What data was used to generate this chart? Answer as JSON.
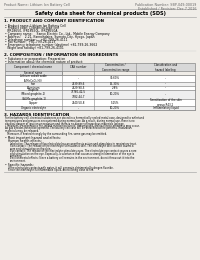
{
  "bg_color": "#f0ede8",
  "header_left": "Product Name: Lithium Ion Battery Cell",
  "header_right_line1": "Publication Number: SBP-049-00019",
  "header_right_line2": "Established / Revision: Dec.7.2016",
  "main_title": "Safety data sheet for chemical products (SDS)",
  "section1_title": "1. PRODUCT AND COMPANY IDENTIFICATION",
  "section1_lines": [
    "• Product name: Lithium Ion Battery Cell",
    "• Product code: Cylindrical-type cell",
    "  IFR18650, IFR18650L, IFR18650A",
    "• Company name:    Sanyo Electric Co., Ltd., Mobile Energy Company",
    "• Address:    2-21, Kannondaira, Sumoto-City, Hyogo, Japan",
    "• Telephone number:    +81-799-26-4111",
    "• Fax number:  +81-799-26-4123",
    "• Emergency telephone number (daytime) +81-799-26-3662",
    "  (Night and holiday) +81-799-26-4101"
  ],
  "section2_title": "2. COMPOSITION / INFORMATION ON INGREDIENTS",
  "section2_sub": "• Substance or preparation: Preparation",
  "section2_subsub": "• Information about the chemical nature of product:",
  "table_headers": [
    "Component / chemical name",
    "CAS number",
    "Concentration /\nConcentration range",
    "Classification and\nhazard labeling"
  ],
  "table_col_header": "Several name",
  "table_rows": [
    [
      "Lithium cobalt oxide\n(LiMnCoO₂(H))",
      "-",
      "30-60%",
      "-"
    ],
    [
      "Iron",
      "7439-89-6",
      "15-30%",
      "-"
    ],
    [
      "Aluminum",
      "7429-90-5",
      "2-8%",
      "-"
    ],
    [
      "Graphite\n(Mixed graphite-1)\n(AI-Mo graphite-1)",
      "77760-42-5\n7782-44-7",
      "10-20%",
      "-"
    ],
    [
      "Copper",
      "7440-50-8",
      "5-15%",
      "Sensitization of the skin\ngroup R43.2"
    ],
    [
      "Organic electrolyte",
      "-",
      "10-20%",
      "Inflammatory liquid"
    ]
  ],
  "section3_title": "3. HAZARDS IDENTIFICATION",
  "section3_para": [
    "For the battery cell, chemical substances are stored in a hermetically sealed metal case, designed to withstand",
    "temperatures and pressures encountered during normal use. As a result, during normal use, there is no",
    "physical danger of ignition or explosion and there is no danger of hazardous materials leakage.",
    "   However, if exposed to a fire, added mechanical shock, decomposed, amino-electro-otherness may occur.",
    "As gas besides cannot be operated. The battery cell case will be breached at fire patterns. Hazardous",
    "materials may be released.",
    "   Moreover, if heated strongly by the surrounding fire, some gas may be emitted."
  ],
  "section3_bullet1": "• Most important hazard and effects:",
  "section3_human": "Human health effects:",
  "section3_human_lines": [
    "Inhalation: The release of the electrolyte has an anesthesia action and stimulates in respiratory tract.",
    "Skin contact: The release of the electrolyte stimulates a skin. The electrolyte skin contact causes a",
    "sore and stimulation on the skin.",
    "Eye contact: The release of the electrolyte stimulates eyes. The electrolyte eye contact causes a sore",
    "and stimulation on the eye. Especially, a substance that causes a strong inflammation of the eye is",
    "contained.",
    "Environmental effects: Since a battery cell remains in the environment, do not throw out it into the",
    "environment."
  ],
  "section3_specific": "• Specific hazards:",
  "section3_specific_lines": [
    "If the electrolyte contacts with water, it will generate detrimental hydrogen fluoride.",
    "Since the electrolyte is inflammable liquid, do not bring close to fire."
  ]
}
